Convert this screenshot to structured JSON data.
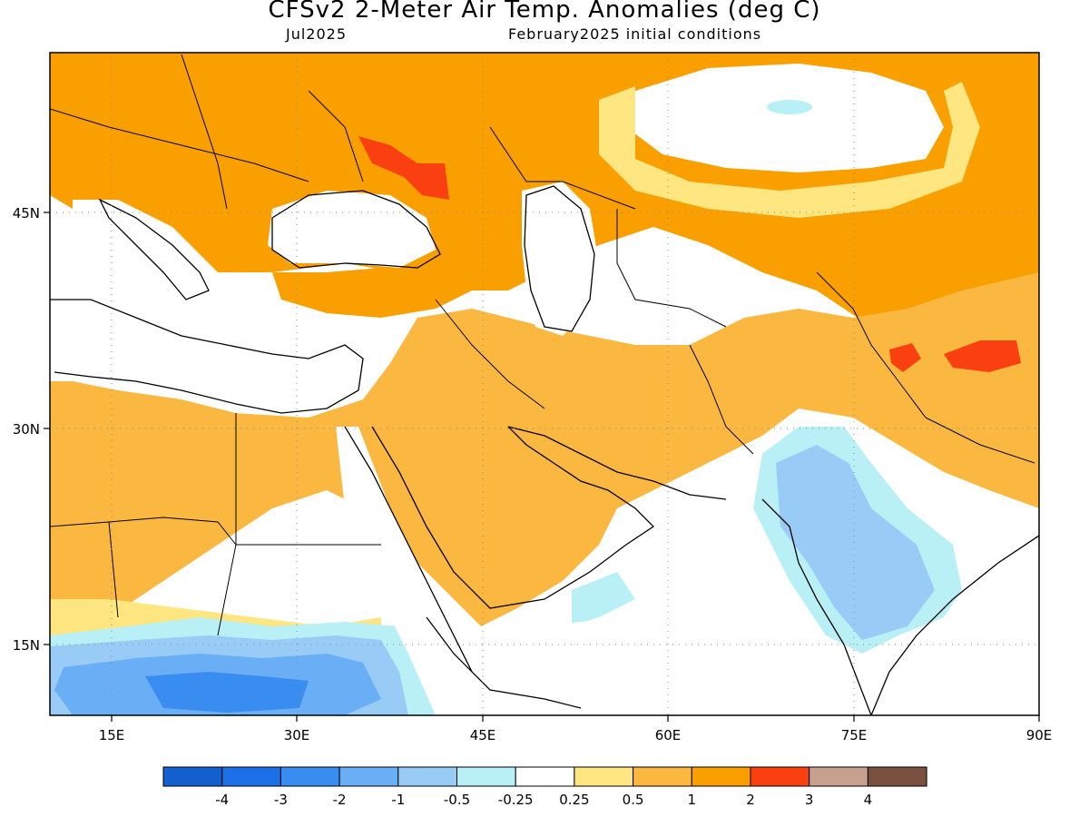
{
  "header": {
    "title": "CFSv2 2-Meter Air Temp. Anomalies (deg C)",
    "valid_month": "Jul2025",
    "init_label": "February2025 initial conditions"
  },
  "map": {
    "lon_range": [
      10,
      90
    ],
    "lat_range": [
      10,
      57
    ],
    "lon_ticks": [
      "15E",
      "30E",
      "45E",
      "60E",
      "75E",
      "90E"
    ],
    "lat_ticks": [
      "45N",
      "30N",
      "15N"
    ],
    "gridlines": "dotted"
  },
  "legend": {
    "labels": [
      "-4",
      "-3",
      "-2",
      "-1",
      "-0.5",
      "-0.25",
      "0.25",
      "0.5",
      "1",
      "2",
      "3",
      "4"
    ],
    "colors": [
      "#1560d0",
      "#1c6fe6",
      "#3a8df0",
      "#6aaef5",
      "#98ccf7",
      "#b8f0f5",
      "#ffffff",
      "#ffe680",
      "#fbb840",
      "#fa9f00",
      "#fa4010",
      "#c8a090",
      "#7a5040"
    ]
  }
}
